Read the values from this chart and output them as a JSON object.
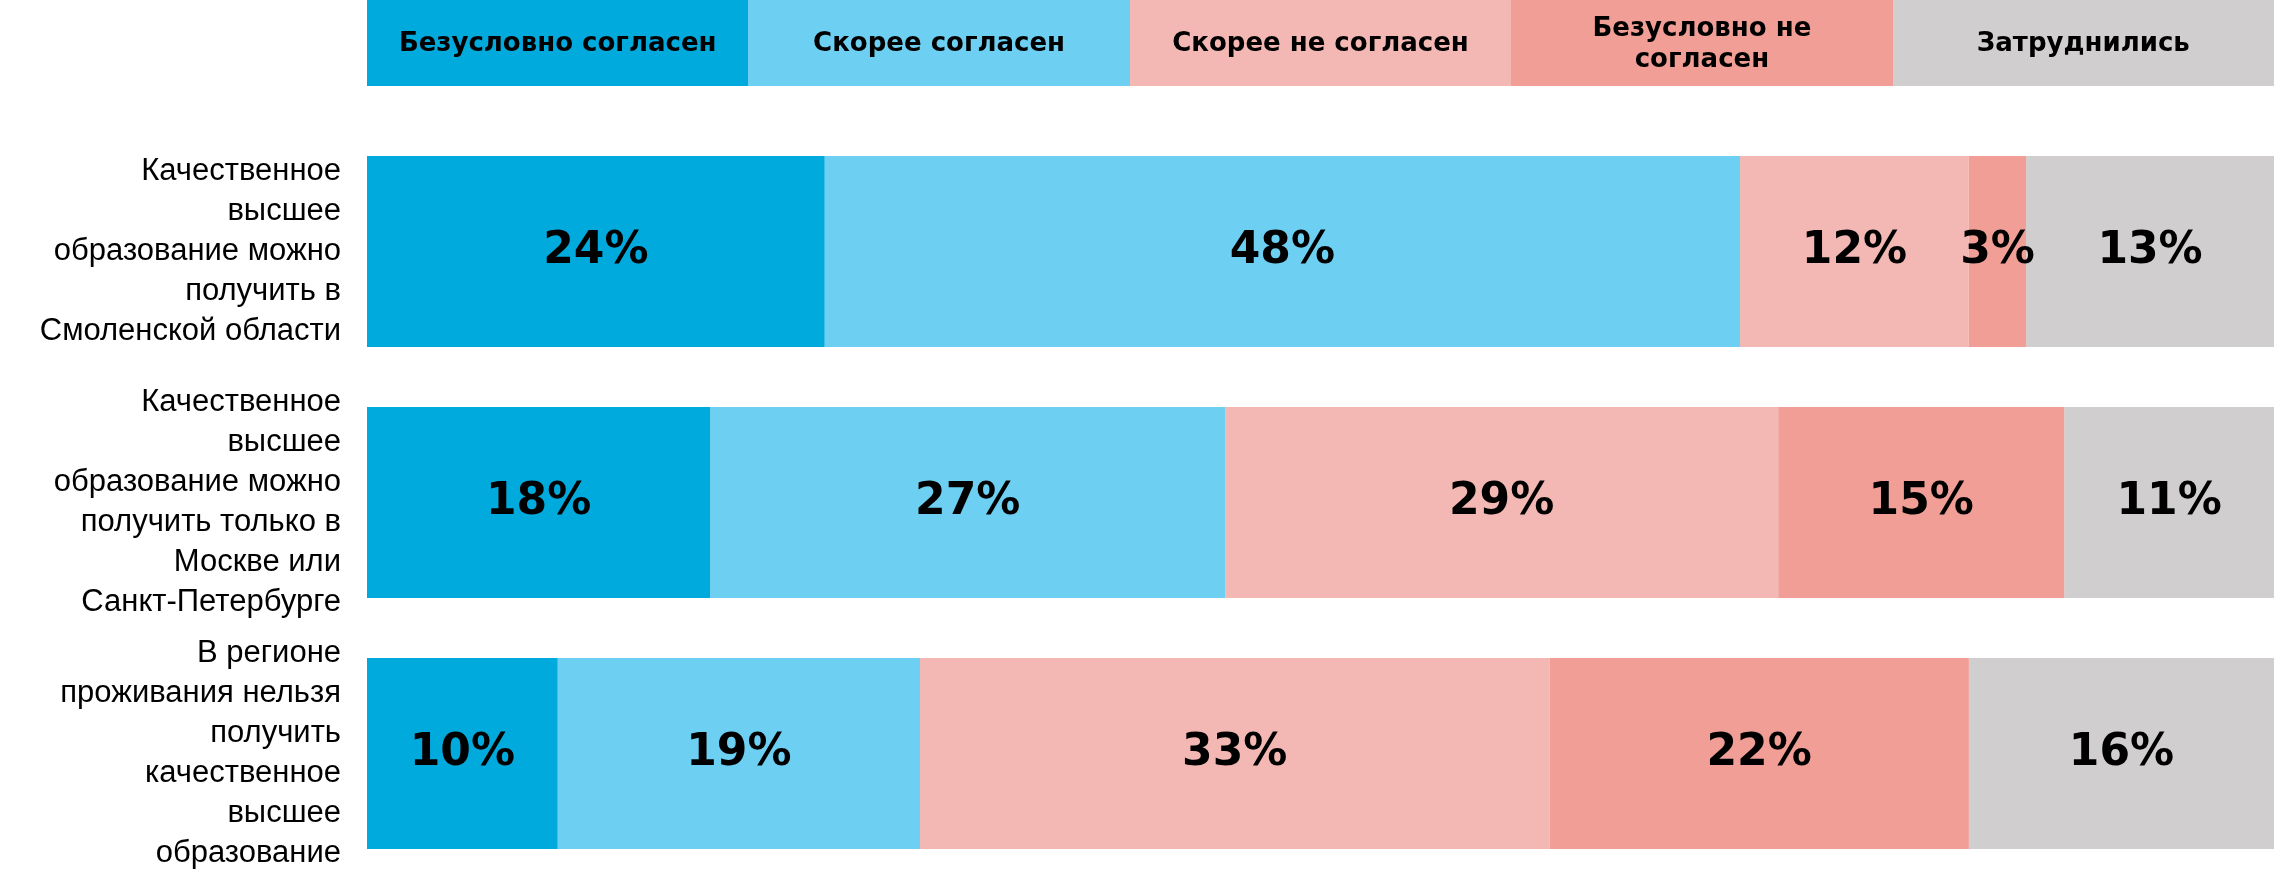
{
  "chart_data": {
    "type": "bar",
    "orientation": "horizontal",
    "stacked": true,
    "legend": "top",
    "tick_labels": "y",
    "xlim": [
      0,
      100
    ],
    "categories": [
      "Качественное высшее образование можно получить в Смоленской области",
      "Качественное высшее образование можно получить только в Москве или Санкт-Петербурге",
      "В регионе проживания нельзя получить качественное высшее образование"
    ],
    "series": [
      {
        "name": "Безусловно согласен",
        "color": "#00aadd",
        "values": [
          24,
          18,
          10
        ],
        "value_labels": [
          "24%",
          "18%",
          "10%"
        ]
      },
      {
        "name": "Скорее согласен",
        "color": "#6dd0f3",
        "values": [
          48,
          27,
          19
        ],
        "value_labels": [
          "48%",
          "27%",
          "19%"
        ]
      },
      {
        "name": "Скорее не согласен",
        "color": "#f4b8b4",
        "values": [
          12,
          29,
          33
        ],
        "value_labels": [
          "12%",
          "29%",
          "33%"
        ]
      },
      {
        "name": "Безусловно не согласен",
        "color": "#f09e96",
        "values": [
          3,
          15,
          22
        ],
        "value_labels": [
          "3%",
          "15%",
          "22%"
        ]
      },
      {
        "name": "Затруднились",
        "color": "#d0cece",
        "values": [
          13,
          11,
          16
        ],
        "value_labels": [
          "13%",
          "11%",
          "16%"
        ]
      }
    ]
  }
}
